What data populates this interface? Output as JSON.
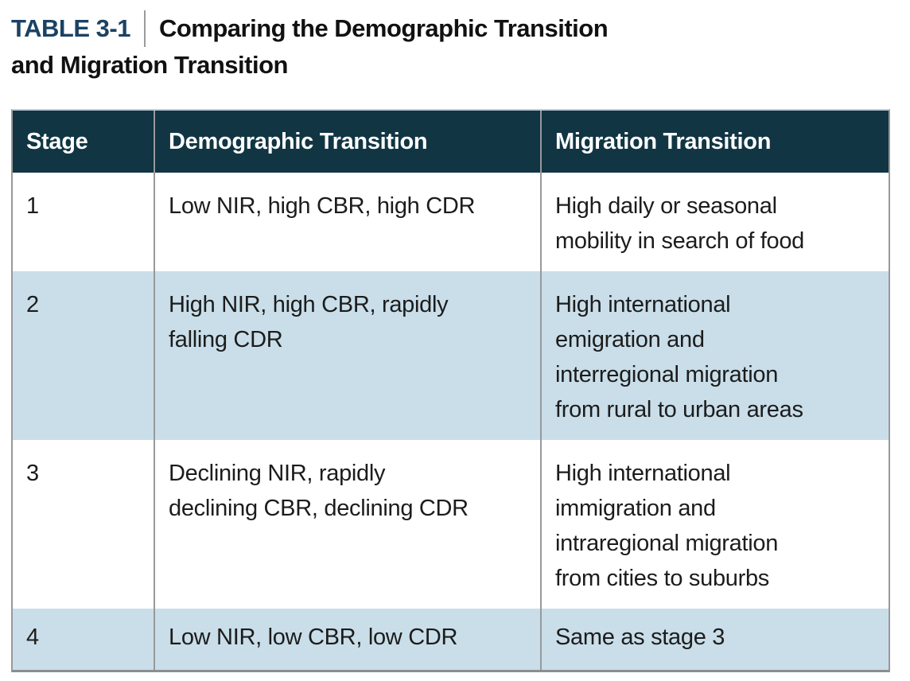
{
  "title": {
    "label": "TABLE 3-1",
    "text_line1": "Comparing the Demographic Transition",
    "text_line2": "and Migration Transition"
  },
  "table": {
    "columns": [
      "Stage",
      "Demographic Transition",
      "Migration Transition"
    ],
    "rows": [
      {
        "stage": "1",
        "demographic": "Low NIR, high CBR, high CDR",
        "migration": "High daily or seasonal\nmobility in search of food"
      },
      {
        "stage": "2",
        "demographic": "High NIR, high CBR, rapidly\nfalling CDR",
        "migration": "High international\nemigration and\ninterregional migration\nfrom rural to urban areas"
      },
      {
        "stage": "3",
        "demographic": "Declining NIR, rapidly\ndeclining CBR, declining CDR",
        "migration": "High international\nimmigration and\nintraregional migration\nfrom cities to suburbs"
      },
      {
        "stage": "4",
        "demographic": "Low NIR, low CBR, low CDR",
        "migration": "Same as stage 3"
      }
    ]
  },
  "colors": {
    "header_bg": "#113543",
    "row_alt_bg": "#c9dee9",
    "title_accent": "#1b4263",
    "cell_border": "#98999b",
    "bottom_border": "#8b8d8f",
    "top_border": "#bacfda",
    "body_text": "#1c1c1c"
  }
}
